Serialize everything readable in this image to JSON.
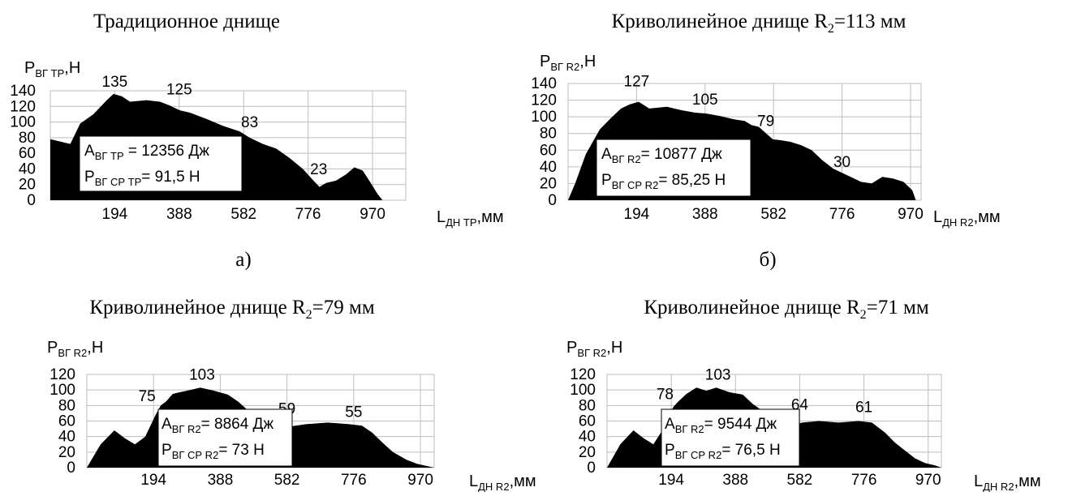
{
  "panels": [
    {
      "title_main": "Традиционное днище",
      "title_sub": "",
      "title_tail": "",
      "caption": "а)",
      "y_label_main": "P",
      "y_label_sub": "ВГ ТР",
      "y_label_tail": ",Н",
      "x_label_main": "L",
      "x_label_sub": "ДН ТР",
      "x_label_tail": ",мм",
      "box_line1_main": "A",
      "box_line1_sub": "ВГ ТР",
      "box_line1_tail": " = 12356 Дж",
      "box_line2_main": "P",
      "box_line2_sub": "ВГ СР ТР",
      "box_line2_tail": "= 91,5 Н"
    },
    {
      "title_main": "Криволинейное днище R",
      "title_sub": "2",
      "title_tail": "=113 мм",
      "caption": "б)",
      "y_label_main": "P",
      "y_label_sub": "ВГ R2",
      "y_label_tail": ",Н",
      "x_label_main": "L",
      "x_label_sub": "ДН R2",
      "x_label_tail": ",мм",
      "box_line1_main": "A",
      "box_line1_sub": "ВГ R2",
      "box_line1_tail": "= 10877 Дж",
      "box_line2_main": "P",
      "box_line2_sub": "ВГ СР R2",
      "box_line2_tail": "= 85,25 Н"
    },
    {
      "title_main": "Криволинейное днище R",
      "title_sub": "2",
      "title_tail": "=79 мм",
      "caption": "",
      "y_label_main": "P",
      "y_label_sub": "ВГ R2",
      "y_label_tail": ",Н",
      "x_label_main": "L",
      "x_label_sub": "ДН R2",
      "x_label_tail": ",мм",
      "box_line1_main": "A",
      "box_line1_sub": "ВГ R2",
      "box_line1_tail": "= 8864 Дж",
      "box_line2_main": "P",
      "box_line2_sub": "ВГ СР R2",
      "box_line2_tail": "= 73 Н"
    },
    {
      "title_main": "Криволинейное днище R",
      "title_sub": "2",
      "title_tail": "=71 мм",
      "caption": "",
      "y_label_main": "P",
      "y_label_sub": "ВГ R2",
      "y_label_tail": ",Н",
      "x_label_main": "L",
      "x_label_sub": "ДН R2",
      "x_label_tail": ",мм",
      "box_line1_main": "A",
      "box_line1_sub": "ВГ R2",
      "box_line1_tail": "= 9544 Дж",
      "box_line2_main": "P",
      "box_line2_sub": "ВГ СР R2",
      "box_line2_tail": "= 76,5 Н"
    }
  ],
  "chart_data": [
    {
      "type": "area",
      "color": "#000000",
      "xlim": [
        0,
        1070
      ],
      "ylim": [
        0,
        140
      ],
      "x_ticks": [
        194,
        388,
        582,
        776,
        970
      ],
      "y_ticks": [
        0,
        20,
        40,
        60,
        80,
        100,
        120,
        140
      ],
      "grid": true,
      "annotations": [
        {
          "x": 194,
          "y": 135,
          "label": "135"
        },
        {
          "x": 388,
          "y": 125,
          "label": "125"
        },
        {
          "x": 600,
          "y": 83,
          "label": "83"
        },
        {
          "x": 808,
          "y": 23,
          "label": "23"
        }
      ],
      "x": [
        0,
        0,
        60,
        90,
        130,
        170,
        190,
        215,
        240,
        290,
        330,
        360,
        375,
        390,
        420,
        470,
        520,
        570,
        600,
        640,
        680,
        720,
        760,
        790,
        810,
        830,
        860,
        890,
        915,
        940,
        960,
        985,
        1000
      ],
      "y": [
        0,
        78,
        72,
        98,
        110,
        128,
        136,
        133,
        126,
        128,
        126,
        121,
        118,
        115,
        112,
        104,
        95,
        88,
        80,
        72,
        66,
        54,
        40,
        26,
        17,
        22,
        25,
        33,
        42,
        38,
        25,
        8,
        0
      ]
    },
    {
      "type": "area",
      "color": "#000000",
      "xlim": [
        0,
        1000
      ],
      "ylim": [
        0,
        140
      ],
      "x_ticks": [
        194,
        388,
        582,
        776,
        970
      ],
      "y_ticks": [
        0,
        20,
        40,
        60,
        80,
        100,
        120,
        140
      ],
      "grid": true,
      "annotations": [
        {
          "x": 194,
          "y": 127,
          "label": "127"
        },
        {
          "x": 388,
          "y": 105,
          "label": "105"
        },
        {
          "x": 560,
          "y": 79,
          "label": "79"
        },
        {
          "x": 776,
          "y": 30,
          "label": "30"
        }
      ],
      "x": [
        0,
        20,
        50,
        90,
        120,
        150,
        175,
        200,
        230,
        280,
        320,
        360,
        390,
        430,
        470,
        500,
        520,
        540,
        580,
        600,
        630,
        660,
        690,
        720,
        750,
        790,
        830,
        860,
        890,
        920,
        950,
        975,
        985
      ],
      "y": [
        0,
        20,
        55,
        85,
        98,
        110,
        115,
        118,
        110,
        112,
        108,
        105,
        104,
        101,
        97,
        95,
        90,
        88,
        73,
        72,
        70,
        66,
        60,
        48,
        38,
        30,
        22,
        20,
        28,
        26,
        22,
        12,
        0
      ]
    },
    {
      "type": "area",
      "color": "#000000",
      "xlim": [
        0,
        1010
      ],
      "ylim": [
        0,
        120
      ],
      "x_ticks": [
        194,
        388,
        582,
        776,
        970
      ],
      "y_ticks": [
        0,
        20,
        40,
        60,
        80,
        100,
        120
      ],
      "grid": true,
      "annotations": [
        {
          "x": 175,
          "y": 75,
          "label": "75"
        },
        {
          "x": 335,
          "y": 103,
          "label": "103"
        },
        {
          "x": 582,
          "y": 59,
          "label": "59"
        },
        {
          "x": 776,
          "y": 55,
          "label": "55"
        }
      ],
      "x": [
        0,
        40,
        80,
        110,
        140,
        170,
        200,
        215,
        230,
        250,
        270,
        300,
        330,
        370,
        410,
        440,
        470,
        480,
        510,
        540,
        560,
        570,
        575,
        590,
        640,
        700,
        760,
        800,
        830,
        860,
        890,
        930,
        960,
        990,
        1010
      ],
      "y": [
        0,
        30,
        48,
        38,
        30,
        40,
        68,
        80,
        85,
        95,
        97,
        100,
        103,
        99,
        94,
        85,
        73,
        60,
        58,
        58,
        60,
        58,
        50,
        53,
        56,
        58,
        56,
        54,
        45,
        32,
        20,
        10,
        5,
        2,
        0
      ]
    },
    {
      "type": "area",
      "color": "#000000",
      "xlim": [
        0,
        1010
      ],
      "ylim": [
        0,
        120
      ],
      "x_ticks": [
        194,
        388,
        582,
        776,
        970
      ],
      "y_ticks": [
        0,
        20,
        40,
        60,
        80,
        100,
        120
      ],
      "grid": true,
      "annotations": [
        {
          "x": 175,
          "y": 78,
          "label": "78"
        },
        {
          "x": 335,
          "y": 103,
          "label": "103"
        },
        {
          "x": 582,
          "y": 64,
          "label": "64"
        },
        {
          "x": 776,
          "y": 61,
          "label": "61"
        }
      ],
      "x": [
        0,
        40,
        80,
        110,
        140,
        170,
        200,
        215,
        240,
        270,
        300,
        330,
        370,
        410,
        440,
        480,
        500,
        515,
        525,
        545,
        570,
        590,
        640,
        700,
        760,
        800,
        840,
        870,
        900,
        930,
        960,
        990,
        1010
      ],
      "y": [
        0,
        30,
        48,
        38,
        30,
        50,
        78,
        85,
        95,
        103,
        99,
        103,
        97,
        94,
        82,
        70,
        60,
        58,
        66,
        62,
        56,
        58,
        60,
        58,
        60,
        58,
        45,
        32,
        22,
        12,
        6,
        3,
        0
      ]
    }
  ]
}
